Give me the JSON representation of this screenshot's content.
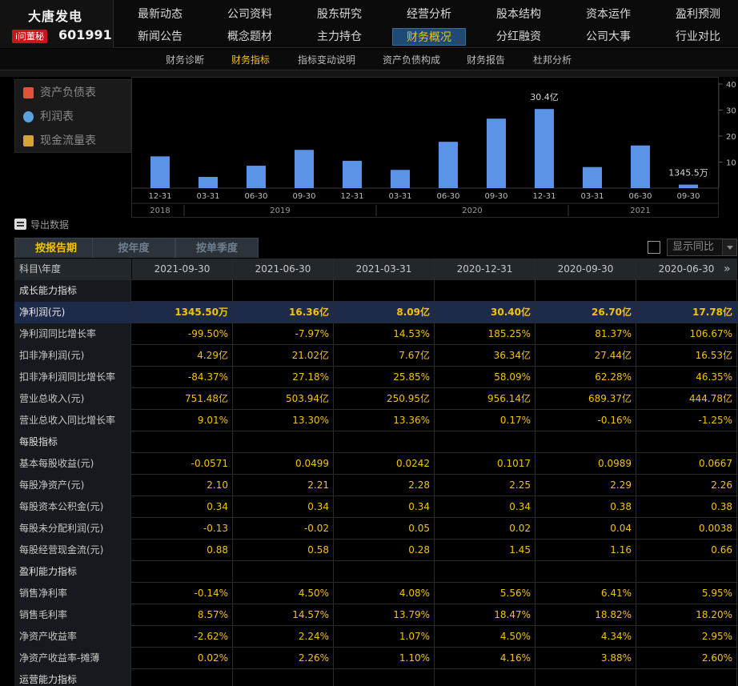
{
  "stock": {
    "name": "大唐发电",
    "ask_badge": "i问董秘",
    "code": "601991"
  },
  "nav_row1": [
    "最新动态",
    "公司资料",
    "股东研究",
    "经营分析",
    "股本结构",
    "资本运作",
    "盈利预测"
  ],
  "nav_row2": [
    "新闻公告",
    "概念题材",
    "主力持仓",
    "财务概况",
    "分红融资",
    "公司大事",
    "行业对比"
  ],
  "nav_active": "财务概况",
  "subnav": [
    "财务诊断",
    "财务指标",
    "指标变动说明",
    "资产负债构成",
    "财务报告",
    "杜邦分析"
  ],
  "subnav_active": "财务指标",
  "statement_menu": [
    {
      "label": "资产负债表",
      "icon": "balance-sheet-icon",
      "color": "#e0533a"
    },
    {
      "label": "利润表",
      "icon": "income-statement-icon",
      "color": "#5aa1e0"
    },
    {
      "label": "现金流量表",
      "icon": "cash-flow-icon",
      "color": "#d7a630"
    }
  ],
  "export_label": "导出数据",
  "tabs": [
    "按报告期",
    "按年度",
    "按单季度"
  ],
  "tab_active": "按报告期",
  "yoy_label": "显示同比",
  "chart_data": {
    "type": "bar",
    "categories": [
      "12-31",
      "03-31",
      "06-30",
      "09-30",
      "12-31",
      "03-31",
      "06-30",
      "09-30",
      "12-31",
      "03-31",
      "06-30",
      "09-30"
    ],
    "years": [
      {
        "label": "2018",
        "from": 0,
        "to": 0
      },
      {
        "label": "2019",
        "from": 1,
        "to": 4
      },
      {
        "label": "2020",
        "from": 5,
        "to": 8
      },
      {
        "label": "2021",
        "from": 9,
        "to": 11
      }
    ],
    "values": [
      12.2,
      4.3,
      8.6,
      14.7,
      10.5,
      7.0,
      17.8,
      26.7,
      30.4,
      8.1,
      16.4,
      1.3455
    ],
    "data_labels": [
      {
        "index": 8,
        "text": "30.4亿"
      },
      {
        "index": 11,
        "text": "1345.5万"
      }
    ],
    "ylim": [
      0,
      40
    ],
    "yticks": [
      10,
      20,
      30,
      40
    ],
    "bar_color": "#5b93e6",
    "grid": false
  },
  "table": {
    "header_label": "科目\\年度",
    "columns": [
      "2021-09-30",
      "2021-06-30",
      "2021-03-31",
      "2020-12-31",
      "2020-09-30",
      "2020-06-30"
    ],
    "rows": [
      {
        "type": "section",
        "label": "成长能力指标",
        "values": []
      },
      {
        "type": "highlight",
        "label": "净利润(元)",
        "values": [
          "1345.50万",
          "16.36亿",
          "8.09亿",
          "30.40亿",
          "26.70亿",
          "17.78亿"
        ]
      },
      {
        "type": "data",
        "label": "净利润同比增长率",
        "values": [
          "-99.50%",
          "-7.97%",
          "14.53%",
          "185.25%",
          "81.37%",
          "106.67%"
        ]
      },
      {
        "type": "data",
        "label": "扣非净利润(元)",
        "values": [
          "4.29亿",
          "21.02亿",
          "7.67亿",
          "36.34亿",
          "27.44亿",
          "16.53亿"
        ]
      },
      {
        "type": "data",
        "label": "扣非净利润同比增长率",
        "values": [
          "-84.37%",
          "27.18%",
          "25.85%",
          "58.09%",
          "62.28%",
          "46.35%"
        ]
      },
      {
        "type": "data",
        "label": "营业总收入(元)",
        "values": [
          "751.48亿",
          "503.94亿",
          "250.95亿",
          "956.14亿",
          "689.37亿",
          "444.78亿"
        ]
      },
      {
        "type": "data",
        "label": "营业总收入同比增长率",
        "values": [
          "9.01%",
          "13.30%",
          "13.36%",
          "0.17%",
          "-0.16%",
          "-1.25%"
        ]
      },
      {
        "type": "section",
        "label": "每股指标",
        "values": []
      },
      {
        "type": "data",
        "label": "基本每股收益(元)",
        "values": [
          "-0.0571",
          "0.0499",
          "0.0242",
          "0.1017",
          "0.0989",
          "0.0667"
        ]
      },
      {
        "type": "data",
        "label": "每股净资产(元)",
        "values": [
          "2.10",
          "2.21",
          "2.28",
          "2.25",
          "2.29",
          "2.26"
        ]
      },
      {
        "type": "data",
        "label": "每股资本公积金(元)",
        "values": [
          "0.34",
          "0.34",
          "0.34",
          "0.34",
          "0.38",
          "0.38"
        ]
      },
      {
        "type": "data",
        "label": "每股未分配利润(元)",
        "values": [
          "-0.13",
          "-0.02",
          "0.05",
          "0.02",
          "0.04",
          "0.0038"
        ]
      },
      {
        "type": "data",
        "label": "每股经营现金流(元)",
        "values": [
          "0.88",
          "0.58",
          "0.28",
          "1.45",
          "1.16",
          "0.66"
        ]
      },
      {
        "type": "section",
        "label": "盈利能力指标",
        "values": []
      },
      {
        "type": "data",
        "label": "销售净利率",
        "values": [
          "-0.14%",
          "4.50%",
          "4.08%",
          "5.56%",
          "6.41%",
          "5.95%"
        ]
      },
      {
        "type": "data",
        "label": "销售毛利率",
        "values": [
          "8.57%",
          "14.57%",
          "13.79%",
          "18.47%",
          "18.82%",
          "18.20%"
        ]
      },
      {
        "type": "data",
        "label": "净资产收益率",
        "values": [
          "-2.62%",
          "2.24%",
          "1.07%",
          "4.50%",
          "4.34%",
          "2.95%"
        ]
      },
      {
        "type": "data",
        "label": "净资产收益率-摊薄",
        "values": [
          "0.02%",
          "2.26%",
          "1.10%",
          "4.16%",
          "3.88%",
          "2.60%"
        ]
      },
      {
        "type": "section",
        "label": "运营能力指标",
        "values": []
      }
    ]
  }
}
